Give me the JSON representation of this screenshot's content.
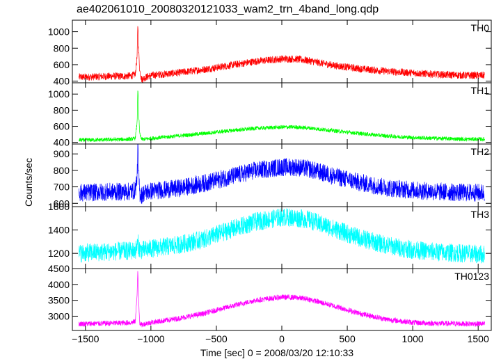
{
  "chart_data": {
    "type": "line",
    "title": "ae402061010_20080320121033_wam2_trn_4band_long.qdp",
    "xlabel": "Time [sec] 0 = 2008/03/20 12:10:33",
    "ylabel": "Counts/sec",
    "xlim": [
      -1600,
      1600
    ],
    "x_ticks": [
      -1500,
      -1000,
      -500,
      0,
      500,
      1000,
      1500
    ],
    "x_tick_labels": [
      "−1500",
      "−1000",
      "−500",
      "0",
      "500",
      "1000",
      "1500"
    ],
    "grid": false,
    "panels": [
      {
        "name": "TH0",
        "color": "#ff0000",
        "ylim": [
          380,
          1140
        ],
        "y_ticks": [
          400,
          600,
          800,
          1000
        ],
        "x": [
          -1550,
          -1500,
          -1400,
          -1300,
          -1200,
          -1150,
          -1120,
          -1105,
          -1100,
          -1095,
          -1085,
          -1070,
          -1050,
          -1000,
          -800,
          -600,
          -400,
          -200,
          0,
          100,
          200,
          400,
          600,
          800,
          1000,
          1200,
          1400,
          1550
        ],
        "y": [
          450,
          450,
          455,
          460,
          460,
          465,
          480,
          700,
          1120,
          820,
          520,
          420,
          440,
          470,
          500,
          540,
          590,
          640,
          670,
          670,
          650,
          590,
          550,
          520,
          500,
          480,
          470,
          470
        ],
        "noise": 45
      },
      {
        "name": "TH1",
        "color": "#00ff00",
        "ylim": [
          380,
          1140
        ],
        "y_ticks": [
          400,
          600,
          800,
          1000
        ],
        "x": [
          -1550,
          -1500,
          -1400,
          -1300,
          -1200,
          -1150,
          -1120,
          -1105,
          -1100,
          -1095,
          -1085,
          -1070,
          -1050,
          -1000,
          -800,
          -600,
          -400,
          -200,
          0,
          100,
          200,
          400,
          600,
          800,
          1000,
          1200,
          1400,
          1550
        ],
        "y": [
          430,
          430,
          432,
          435,
          438,
          440,
          450,
          650,
          1100,
          800,
          500,
          440,
          440,
          450,
          480,
          510,
          545,
          575,
          590,
          590,
          580,
          545,
          510,
          480,
          460,
          450,
          440,
          440
        ],
        "noise": 25
      },
      {
        "name": "TH2",
        "color": "#0000ff",
        "ylim": [
          580,
          960
        ],
        "y_ticks": [
          600,
          700,
          800,
          900
        ],
        "x": [
          -1550,
          -1500,
          -1400,
          -1300,
          -1200,
          -1150,
          -1120,
          -1105,
          -1100,
          -1095,
          -1085,
          -1070,
          -1050,
          -1000,
          -800,
          -600,
          -400,
          -200,
          0,
          100,
          200,
          400,
          600,
          800,
          1000,
          1200,
          1400,
          1550
        ],
        "y": [
          665,
          665,
          668,
          670,
          670,
          672,
          680,
          760,
          950,
          800,
          660,
          650,
          665,
          675,
          690,
          720,
          760,
          800,
          820,
          820,
          810,
          765,
          725,
          695,
          680,
          670,
          665,
          665
        ],
        "noise": 55
      },
      {
        "name": "TH3",
        "color": "#00ffff",
        "ylim": [
          1070,
          1600
        ],
        "y_ticks": [
          1200,
          1400,
          1600
        ],
        "x": [
          -1550,
          -1500,
          -1400,
          -1300,
          -1200,
          -1150,
          -1120,
          -1105,
          -1100,
          -1095,
          -1085,
          -1070,
          -1050,
          -1000,
          -800,
          -600,
          -400,
          -200,
          0,
          100,
          200,
          400,
          600,
          800,
          1000,
          1200,
          1400,
          1550
        ],
        "y": [
          1200,
          1205,
          1210,
          1215,
          1220,
          1222,
          1225,
          1260,
          1300,
          1260,
          1230,
          1228,
          1230,
          1240,
          1270,
          1320,
          1400,
          1470,
          1510,
          1505,
          1490,
          1410,
          1330,
          1270,
          1230,
          1210,
          1200,
          1190
        ],
        "noise": 80
      },
      {
        "name": "TH0123",
        "color": "#ff00ff",
        "ylim": [
          2550,
          4500
        ],
        "y_ticks": [
          3000,
          3500,
          4000
        ],
        "y_tick_labels": [
          "3000",
          "3500",
          "4000"
        ],
        "top_label": "4500",
        "x": [
          -1550,
          -1500,
          -1400,
          -1300,
          -1200,
          -1150,
          -1120,
          -1105,
          -1100,
          -1095,
          -1085,
          -1070,
          -1050,
          -1000,
          -800,
          -600,
          -400,
          -200,
          0,
          100,
          200,
          400,
          600,
          800,
          1000,
          1200,
          1400,
          1550
        ],
        "y": [
          2760,
          2760,
          2770,
          2780,
          2790,
          2800,
          2830,
          3700,
          4450,
          3600,
          2780,
          2720,
          2760,
          2800,
          2920,
          3080,
          3300,
          3500,
          3600,
          3590,
          3540,
          3320,
          3080,
          2900,
          2800,
          2770,
          2760,
          2760
        ],
        "noise": 85
      }
    ]
  }
}
